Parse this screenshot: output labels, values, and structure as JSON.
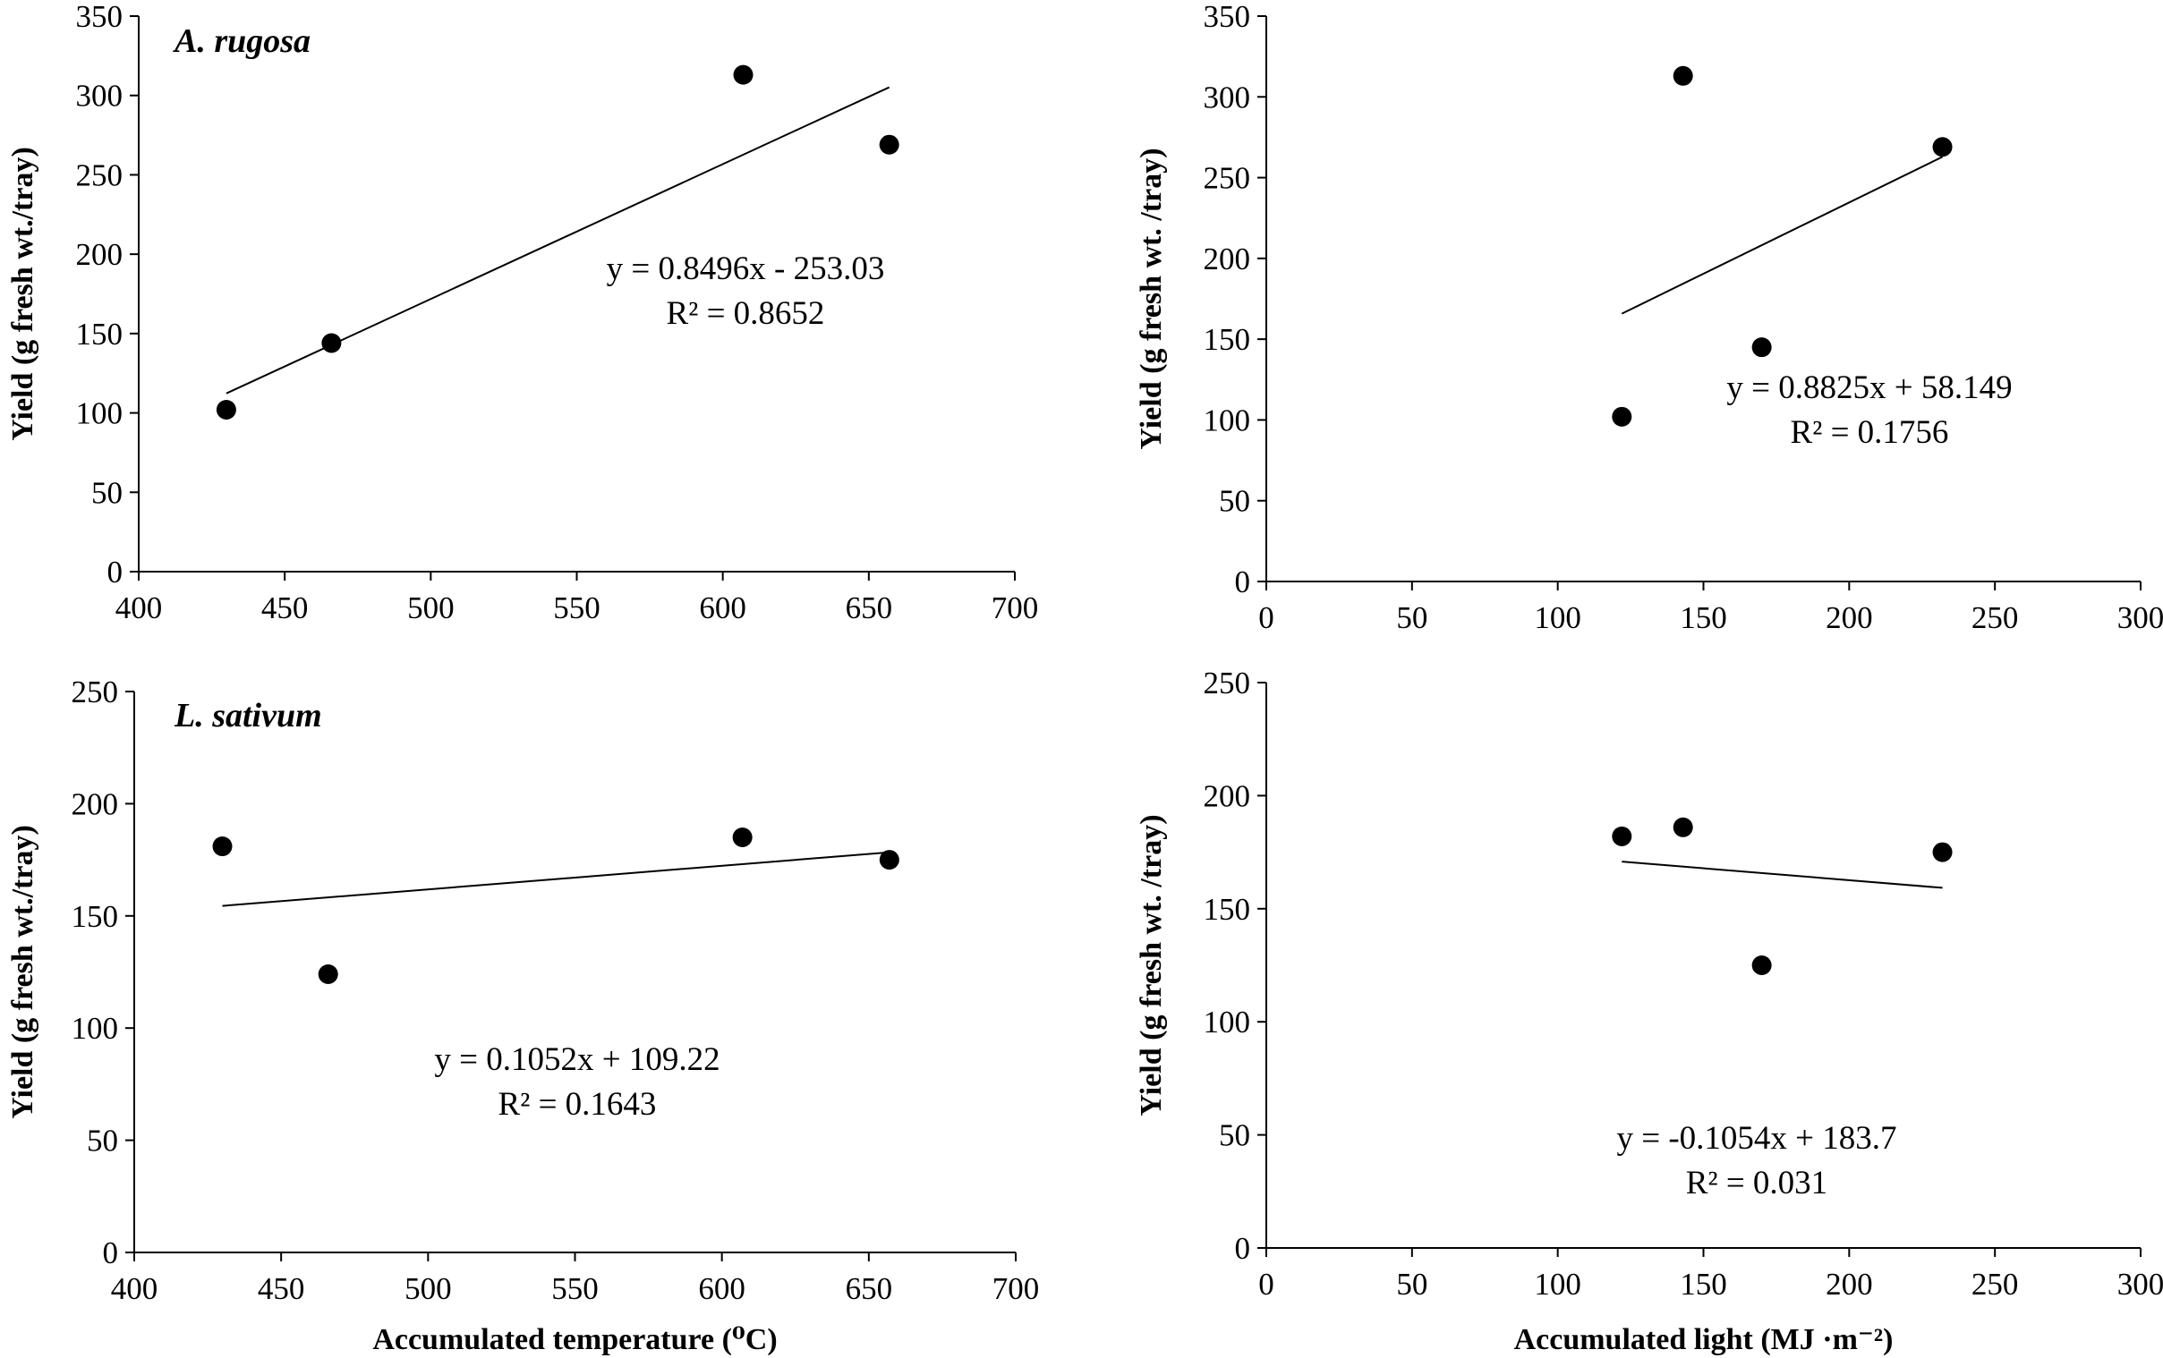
{
  "figure": {
    "xlabel_temperature": "Accumulated temperature (⁰C)",
    "xlabel_light": "Accumulated light  (MJ ·m⁻²)"
  },
  "chart_data": [
    {
      "type": "scatter",
      "species_label": "A. rugosa",
      "ylabel": "Yield  (g fresh wt./tray)",
      "xlabel": "",
      "xlim": [
        400,
        700
      ],
      "ylim": [
        0,
        350
      ],
      "xticks": [
        400,
        450,
        500,
        550,
        600,
        650,
        700
      ],
      "yticks": [
        0,
        50,
        100,
        150,
        200,
        250,
        300,
        350
      ],
      "points": [
        [
          430,
          102
        ],
        [
          466,
          144
        ],
        [
          607,
          313
        ],
        [
          657,
          269
        ]
      ],
      "trendline": {
        "slope": 0.8496,
        "intercept": -253.03,
        "x_range": [
          430,
          657
        ]
      },
      "equation": "y = 0.8496x - 253.03",
      "r2": "R² = 0.8652"
    },
    {
      "type": "scatter",
      "species_label": "",
      "ylabel": "Yield  (g fresh wt. /tray)",
      "xlabel": "",
      "xlim": [
        0,
        300
      ],
      "ylim": [
        0,
        350
      ],
      "xticks": [
        0,
        50,
        100,
        150,
        200,
        250,
        300
      ],
      "yticks": [
        0,
        50,
        100,
        150,
        200,
        250,
        300,
        350
      ],
      "points": [
        [
          122,
          102
        ],
        [
          143,
          313
        ],
        [
          170,
          145
        ],
        [
          232,
          269
        ]
      ],
      "trendline": {
        "slope": 0.8825,
        "intercept": 58.149,
        "x_range": [
          122,
          232
        ]
      },
      "equation": "y = 0.8825x + 58.149",
      "r2": "R² = 0.1756"
    },
    {
      "type": "scatter",
      "species_label": "L. sativum",
      "ylabel": "Yield  (g fresh wt./tray)",
      "xlabel": "Accumulated temperature (⁰C)",
      "xlim": [
        400,
        700
      ],
      "ylim": [
        0,
        250
      ],
      "xticks": [
        400,
        450,
        500,
        550,
        600,
        650,
        700
      ],
      "yticks": [
        0,
        50,
        100,
        150,
        200,
        250
      ],
      "points": [
        [
          430,
          181
        ],
        [
          466,
          124
        ],
        [
          607,
          185
        ],
        [
          657,
          175
        ]
      ],
      "trendline": {
        "slope": 0.1052,
        "intercept": 109.22,
        "x_range": [
          430,
          657
        ]
      },
      "equation": "y = 0.1052x + 109.22",
      "r2": "R² = 0.1643"
    },
    {
      "type": "scatter",
      "species_label": "",
      "ylabel": "Yield  (g fresh wt. /tray)",
      "xlabel": "Accumulated light  (MJ ·m⁻²)",
      "xlim": [
        0,
        300
      ],
      "ylim": [
        0,
        250
      ],
      "xticks": [
        0,
        50,
        100,
        150,
        200,
        250,
        300
      ],
      "yticks": [
        0,
        50,
        100,
        150,
        200,
        250
      ],
      "points": [
        [
          122,
          182
        ],
        [
          143,
          186
        ],
        [
          170,
          125
        ],
        [
          232,
          175
        ]
      ],
      "trendline": {
        "slope": -0.1054,
        "intercept": 183.7,
        "x_range": [
          122,
          232
        ]
      },
      "equation": "y = -0.1054x + 183.7",
      "r2": "R² = 0.031"
    }
  ]
}
